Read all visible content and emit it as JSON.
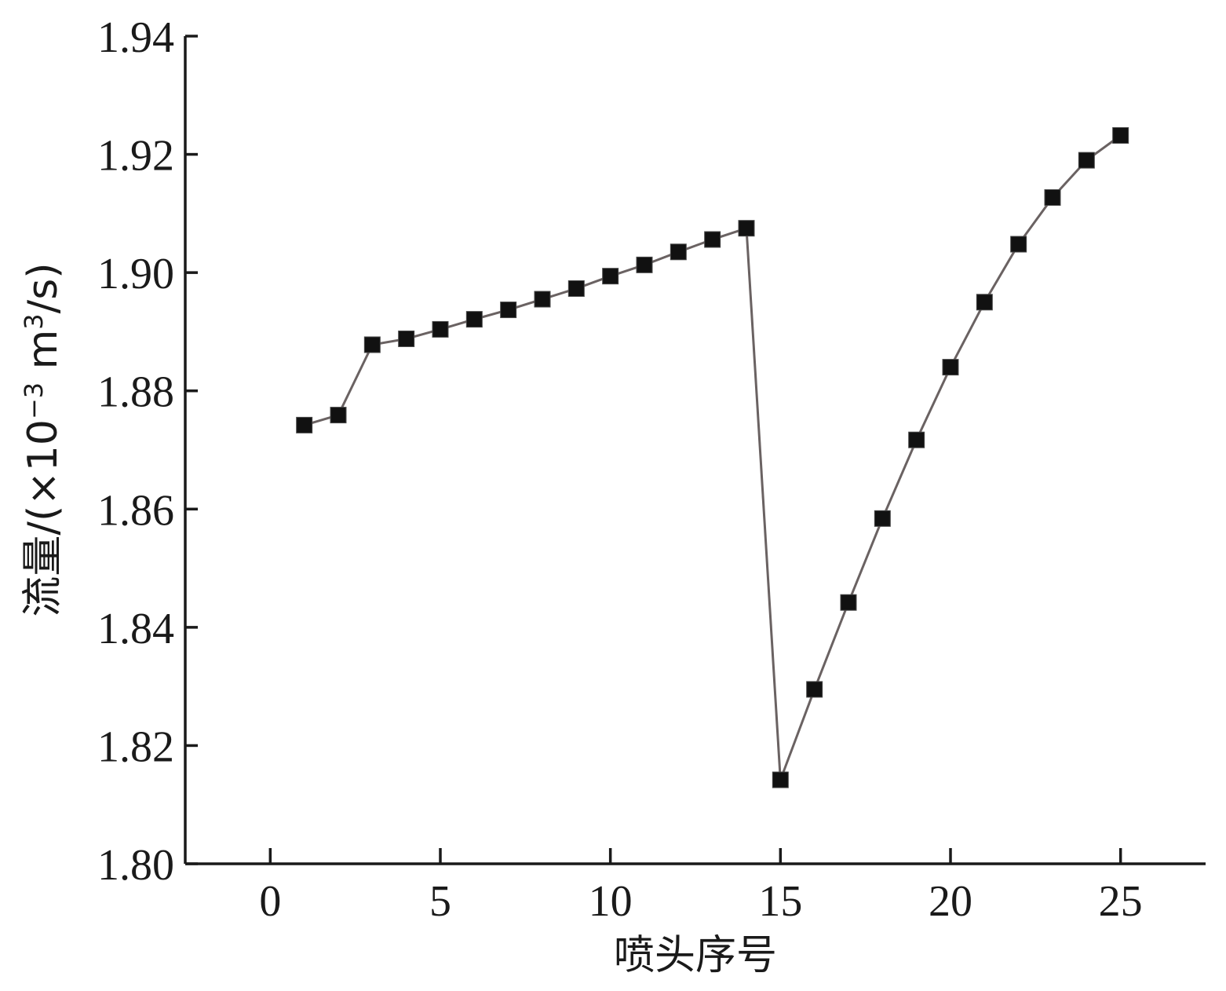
{
  "chart_data": {
    "type": "line",
    "title": "",
    "xlabel": "喷头序号",
    "ylabel_main": "流量/(×10",
    "ylabel_exp1": "−3",
    "ylabel_mid": " m",
    "ylabel_exp2": "3",
    "ylabel_end": "/s)",
    "xlim": [
      -2.5,
      27.5
    ],
    "ylim": [
      1.8,
      1.94
    ],
    "xticks": [
      0,
      5,
      10,
      15,
      20,
      25
    ],
    "xtick_labels": [
      "0",
      "5",
      "10",
      "15",
      "20",
      "25"
    ],
    "yticks": [
      1.8,
      1.82,
      1.84,
      1.86,
      1.88,
      1.9,
      1.92,
      1.94
    ],
    "ytick_labels": [
      "1.80",
      "1.82",
      "1.84",
      "1.86",
      "1.88",
      "1.90",
      "1.92",
      "1.94"
    ],
    "grid": false,
    "legend": "none",
    "series": [
      {
        "marker": "square",
        "color": "#111111",
        "line_color": "#6a6262",
        "x": [
          1,
          2,
          3,
          4,
          5,
          6,
          7,
          8,
          9,
          10,
          11,
          12,
          13,
          14,
          15,
          16,
          17,
          18,
          19,
          20,
          21,
          22,
          23,
          24,
          25
        ],
        "y": [
          1.8742,
          1.8759,
          1.8878,
          1.8888,
          1.8904,
          1.8921,
          1.8937,
          1.8955,
          1.8973,
          1.8994,
          1.9013,
          1.9035,
          1.9056,
          1.9075,
          1.8142,
          1.8295,
          1.8442,
          1.8584,
          1.8717,
          1.884,
          1.895,
          1.9048,
          1.9127,
          1.919,
          1.9232
        ]
      }
    ]
  }
}
